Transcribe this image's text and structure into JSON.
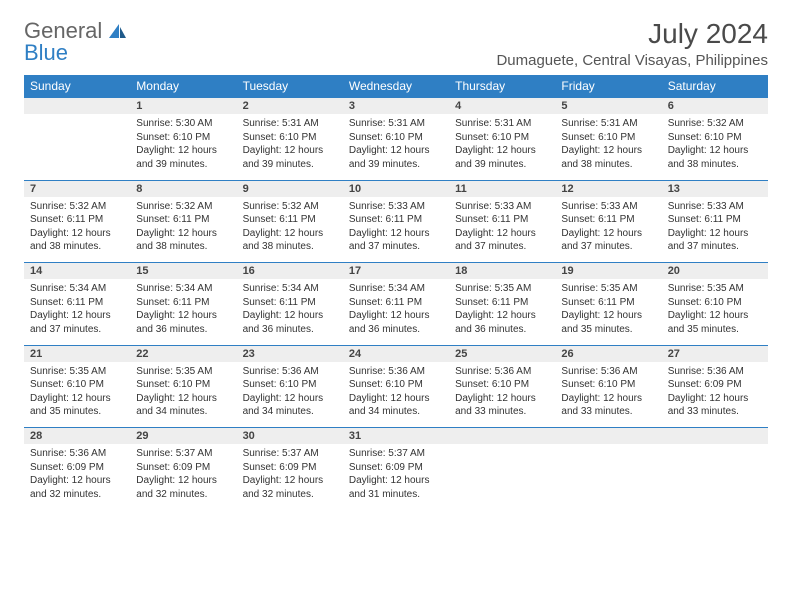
{
  "brand": {
    "word1": "General",
    "word2": "Blue"
  },
  "title": "July 2024",
  "location": "Dumaguete, Central Visayas, Philippines",
  "colors": {
    "header_bg": "#2f7fc4",
    "header_text": "#ffffff",
    "daynum_bg": "#eeeeee",
    "border": "#2f7fc4",
    "text": "#333333"
  },
  "day_headers": [
    "Sunday",
    "Monday",
    "Tuesday",
    "Wednesday",
    "Thursday",
    "Friday",
    "Saturday"
  ],
  "weeks": [
    [
      {
        "n": "",
        "sr": "",
        "ss": "",
        "dl": ""
      },
      {
        "n": "1",
        "sr": "Sunrise: 5:30 AM",
        "ss": "Sunset: 6:10 PM",
        "dl": "Daylight: 12 hours and 39 minutes."
      },
      {
        "n": "2",
        "sr": "Sunrise: 5:31 AM",
        "ss": "Sunset: 6:10 PM",
        "dl": "Daylight: 12 hours and 39 minutes."
      },
      {
        "n": "3",
        "sr": "Sunrise: 5:31 AM",
        "ss": "Sunset: 6:10 PM",
        "dl": "Daylight: 12 hours and 39 minutes."
      },
      {
        "n": "4",
        "sr": "Sunrise: 5:31 AM",
        "ss": "Sunset: 6:10 PM",
        "dl": "Daylight: 12 hours and 39 minutes."
      },
      {
        "n": "5",
        "sr": "Sunrise: 5:31 AM",
        "ss": "Sunset: 6:10 PM",
        "dl": "Daylight: 12 hours and 38 minutes."
      },
      {
        "n": "6",
        "sr": "Sunrise: 5:32 AM",
        "ss": "Sunset: 6:10 PM",
        "dl": "Daylight: 12 hours and 38 minutes."
      }
    ],
    [
      {
        "n": "7",
        "sr": "Sunrise: 5:32 AM",
        "ss": "Sunset: 6:11 PM",
        "dl": "Daylight: 12 hours and 38 minutes."
      },
      {
        "n": "8",
        "sr": "Sunrise: 5:32 AM",
        "ss": "Sunset: 6:11 PM",
        "dl": "Daylight: 12 hours and 38 minutes."
      },
      {
        "n": "9",
        "sr": "Sunrise: 5:32 AM",
        "ss": "Sunset: 6:11 PM",
        "dl": "Daylight: 12 hours and 38 minutes."
      },
      {
        "n": "10",
        "sr": "Sunrise: 5:33 AM",
        "ss": "Sunset: 6:11 PM",
        "dl": "Daylight: 12 hours and 37 minutes."
      },
      {
        "n": "11",
        "sr": "Sunrise: 5:33 AM",
        "ss": "Sunset: 6:11 PM",
        "dl": "Daylight: 12 hours and 37 minutes."
      },
      {
        "n": "12",
        "sr": "Sunrise: 5:33 AM",
        "ss": "Sunset: 6:11 PM",
        "dl": "Daylight: 12 hours and 37 minutes."
      },
      {
        "n": "13",
        "sr": "Sunrise: 5:33 AM",
        "ss": "Sunset: 6:11 PM",
        "dl": "Daylight: 12 hours and 37 minutes."
      }
    ],
    [
      {
        "n": "14",
        "sr": "Sunrise: 5:34 AM",
        "ss": "Sunset: 6:11 PM",
        "dl": "Daylight: 12 hours and 37 minutes."
      },
      {
        "n": "15",
        "sr": "Sunrise: 5:34 AM",
        "ss": "Sunset: 6:11 PM",
        "dl": "Daylight: 12 hours and 36 minutes."
      },
      {
        "n": "16",
        "sr": "Sunrise: 5:34 AM",
        "ss": "Sunset: 6:11 PM",
        "dl": "Daylight: 12 hours and 36 minutes."
      },
      {
        "n": "17",
        "sr": "Sunrise: 5:34 AM",
        "ss": "Sunset: 6:11 PM",
        "dl": "Daylight: 12 hours and 36 minutes."
      },
      {
        "n": "18",
        "sr": "Sunrise: 5:35 AM",
        "ss": "Sunset: 6:11 PM",
        "dl": "Daylight: 12 hours and 36 minutes."
      },
      {
        "n": "19",
        "sr": "Sunrise: 5:35 AM",
        "ss": "Sunset: 6:11 PM",
        "dl": "Daylight: 12 hours and 35 minutes."
      },
      {
        "n": "20",
        "sr": "Sunrise: 5:35 AM",
        "ss": "Sunset: 6:10 PM",
        "dl": "Daylight: 12 hours and 35 minutes."
      }
    ],
    [
      {
        "n": "21",
        "sr": "Sunrise: 5:35 AM",
        "ss": "Sunset: 6:10 PM",
        "dl": "Daylight: 12 hours and 35 minutes."
      },
      {
        "n": "22",
        "sr": "Sunrise: 5:35 AM",
        "ss": "Sunset: 6:10 PM",
        "dl": "Daylight: 12 hours and 34 minutes."
      },
      {
        "n": "23",
        "sr": "Sunrise: 5:36 AM",
        "ss": "Sunset: 6:10 PM",
        "dl": "Daylight: 12 hours and 34 minutes."
      },
      {
        "n": "24",
        "sr": "Sunrise: 5:36 AM",
        "ss": "Sunset: 6:10 PM",
        "dl": "Daylight: 12 hours and 34 minutes."
      },
      {
        "n": "25",
        "sr": "Sunrise: 5:36 AM",
        "ss": "Sunset: 6:10 PM",
        "dl": "Daylight: 12 hours and 33 minutes."
      },
      {
        "n": "26",
        "sr": "Sunrise: 5:36 AM",
        "ss": "Sunset: 6:10 PM",
        "dl": "Daylight: 12 hours and 33 minutes."
      },
      {
        "n": "27",
        "sr": "Sunrise: 5:36 AM",
        "ss": "Sunset: 6:09 PM",
        "dl": "Daylight: 12 hours and 33 minutes."
      }
    ],
    [
      {
        "n": "28",
        "sr": "Sunrise: 5:36 AM",
        "ss": "Sunset: 6:09 PM",
        "dl": "Daylight: 12 hours and 32 minutes."
      },
      {
        "n": "29",
        "sr": "Sunrise: 5:37 AM",
        "ss": "Sunset: 6:09 PM",
        "dl": "Daylight: 12 hours and 32 minutes."
      },
      {
        "n": "30",
        "sr": "Sunrise: 5:37 AM",
        "ss": "Sunset: 6:09 PM",
        "dl": "Daylight: 12 hours and 32 minutes."
      },
      {
        "n": "31",
        "sr": "Sunrise: 5:37 AM",
        "ss": "Sunset: 6:09 PM",
        "dl": "Daylight: 12 hours and 31 minutes."
      },
      {
        "n": "",
        "sr": "",
        "ss": "",
        "dl": ""
      },
      {
        "n": "",
        "sr": "",
        "ss": "",
        "dl": ""
      },
      {
        "n": "",
        "sr": "",
        "ss": "",
        "dl": ""
      }
    ]
  ]
}
